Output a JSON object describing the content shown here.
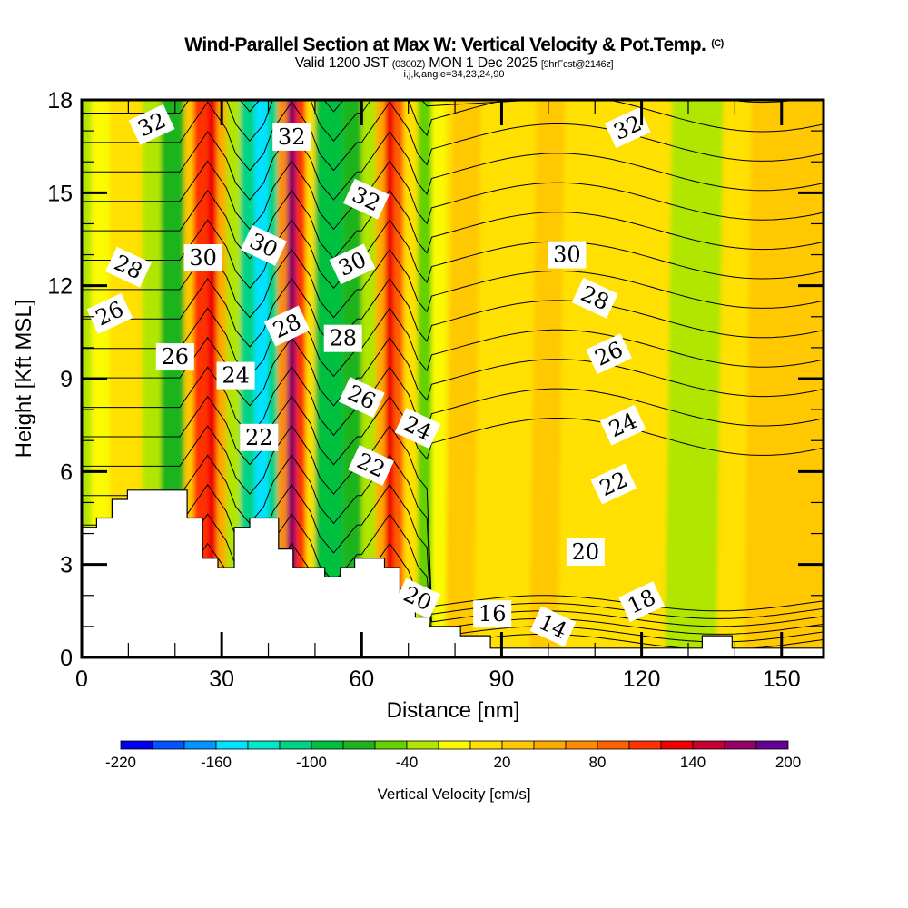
{
  "header": {
    "title": "Wind-Parallel Section at Max W: Vertical Velocity & Pot.Temp.",
    "title_mark": "(C)",
    "valid_prefix": "Valid 1200 JST",
    "valid_utc": "(0300Z)",
    "valid_date": "MON 1 Dec 2025",
    "forecast": "[9hrFcst@2146z]",
    "section_info": "i,j,k,angle=34,23,24,90"
  },
  "chart_data": {
    "type": "heatmap",
    "title": "Wind-Parallel Section at Max W: Vertical Velocity & Pot.Temp.",
    "xlabel": "Distance [nm]",
    "ylabel": "Height [Kft MSL]",
    "xlim": [
      0,
      159
    ],
    "ylim": [
      0,
      18
    ],
    "xticks": [
      0,
      30,
      60,
      90,
      120,
      150
    ],
    "yticks": [
      0,
      3,
      6,
      9,
      12,
      15,
      18
    ],
    "x_minor_step": 10,
    "y_minor_step": 1,
    "colorbar": {
      "label": "Vertical Velocity [cm/s]",
      "levels": [
        -220,
        -200,
        -180,
        -160,
        -140,
        -120,
        -100,
        -80,
        -60,
        -40,
        -20,
        0,
        20,
        40,
        60,
        80,
        100,
        120,
        140,
        160,
        180,
        200
      ],
      "tick_labels": [
        "-220",
        "-160",
        "-100",
        "-40",
        "20",
        "80",
        "140",
        "200"
      ],
      "colors": [
        "#0000f0",
        "#0055ff",
        "#0095ff",
        "#00e2ff",
        "#00e8c8",
        "#00d385",
        "#00c040",
        "#1eb41e",
        "#64d200",
        "#b0e600",
        "#fafa00",
        "#ffe000",
        "#ffc800",
        "#ffaa00",
        "#ff8c00",
        "#ff6000",
        "#ff3200",
        "#f00000",
        "#c80032",
        "#960064",
        "#640096"
      ]
    },
    "vertical_velocity_columns": [
      {
        "x": [
          0,
          2
        ],
        "w": -30
      },
      {
        "x": [
          2,
          6
        ],
        "w": -10
      },
      {
        "x": [
          6,
          13
        ],
        "w": 0
      },
      {
        "x": [
          13,
          17
        ],
        "w": -30
      },
      {
        "x": [
          17,
          22
        ],
        "w": -70
      },
      {
        "x": [
          22,
          24
        ],
        "w": 30
      },
      {
        "x": [
          24,
          27
        ],
        "w": 110
      },
      {
        "x": [
          27,
          29
        ],
        "w": 130
      },
      {
        "x": [
          29,
          31
        ],
        "w": 50
      },
      {
        "x": [
          31,
          34
        ],
        "w": -30
      },
      {
        "x": [
          34,
          37
        ],
        "w": -110
      },
      {
        "x": [
          37,
          40
        ],
        "w": -150
      },
      {
        "x": [
          40,
          42
        ],
        "w": -110
      },
      {
        "x": [
          42,
          44
        ],
        "w": 70
      },
      {
        "x": [
          44,
          46
        ],
        "w": 170
      },
      {
        "x": [
          46,
          48
        ],
        "w": 110
      },
      {
        "x": [
          48,
          50
        ],
        "w": 10
      },
      {
        "x": [
          50,
          56
        ],
        "w": -90
      },
      {
        "x": [
          56,
          60
        ],
        "w": -70
      },
      {
        "x": [
          60,
          63
        ],
        "w": -30
      },
      {
        "x": [
          63,
          65
        ],
        "w": 50
      },
      {
        "x": [
          65,
          67
        ],
        "w": 130
      },
      {
        "x": [
          67,
          69
        ],
        "w": 90
      },
      {
        "x": [
          69,
          72
        ],
        "w": 10
      },
      {
        "x": [
          72,
          75
        ],
        "w": -50
      },
      {
        "x": [
          75,
          78
        ],
        "w": -10
      },
      {
        "x": [
          78,
          84
        ],
        "w": 30
      },
      {
        "x": [
          84,
          90
        ],
        "w": 10
      },
      {
        "x": [
          90,
          96
        ],
        "w": 10
      },
      {
        "x": [
          96,
          102
        ],
        "w": 30
      },
      {
        "x": [
          102,
          112
        ],
        "w": 10
      },
      {
        "x": [
          112,
          120
        ],
        "w": 10
      },
      {
        "x": [
          120,
          125
        ],
        "w": 10
      },
      {
        "x": [
          125,
          136
        ],
        "w": -30
      },
      {
        "x": [
          136,
          142
        ],
        "w": 10
      },
      {
        "x": [
          142,
          159
        ],
        "w": 30
      }
    ],
    "terrain": [
      [
        0,
        4.2
      ],
      [
        3.2,
        4.2
      ],
      [
        3.2,
        4.5
      ],
      [
        6.5,
        4.5
      ],
      [
        6.5,
        5.1
      ],
      [
        9.8,
        5.1
      ],
      [
        9.8,
        5.4
      ],
      [
        22.6,
        5.4
      ],
      [
        22.6,
        4.5
      ],
      [
        25.9,
        4.5
      ],
      [
        25.9,
        3.2
      ],
      [
        29.2,
        3.2
      ],
      [
        29.2,
        2.9
      ],
      [
        32.7,
        2.9
      ],
      [
        32.7,
        4.2
      ],
      [
        36.0,
        4.2
      ],
      [
        36.0,
        4.5
      ],
      [
        42.2,
        4.5
      ],
      [
        42.2,
        3.5
      ],
      [
        45.3,
        3.5
      ],
      [
        45.3,
        2.9
      ],
      [
        52.1,
        2.9
      ],
      [
        52.1,
        2.6
      ],
      [
        55.4,
        2.6
      ],
      [
        55.4,
        2.9
      ],
      [
        58.5,
        2.9
      ],
      [
        58.5,
        3.2
      ],
      [
        64.9,
        3.2
      ],
      [
        64.9,
        2.9
      ],
      [
        68.2,
        2.9
      ],
      [
        68.2,
        1.9
      ],
      [
        71.5,
        1.9
      ],
      [
        71.5,
        1.3
      ],
      [
        74.5,
        1.3
      ],
      [
        74.5,
        1.0
      ],
      [
        81.2,
        1.0
      ],
      [
        81.2,
        0.7
      ],
      [
        87.6,
        0.7
      ],
      [
        87.6,
        0.3
      ],
      [
        133.0,
        0.3
      ],
      [
        133.0,
        0.7
      ],
      [
        139.4,
        0.7
      ],
      [
        139.4,
        0.3
      ],
      [
        159,
        0.3
      ]
    ],
    "isentrope_labels": [
      {
        "value": "32",
        "x": 15,
        "y": 17.2
      },
      {
        "value": "32",
        "x": 45,
        "y": 16.8
      },
      {
        "value": "32",
        "x": 61,
        "y": 14.8
      },
      {
        "value": "32",
        "x": 117,
        "y": 17.1
      },
      {
        "value": "30",
        "x": 26,
        "y": 12.9
      },
      {
        "value": "30",
        "x": 39,
        "y": 13.3
      },
      {
        "value": "30",
        "x": 58,
        "y": 12.7
      },
      {
        "value": "30",
        "x": 104,
        "y": 13.0
      },
      {
        "value": "28",
        "x": 10,
        "y": 12.6
      },
      {
        "value": "28",
        "x": 44,
        "y": 10.7
      },
      {
        "value": "28",
        "x": 56,
        "y": 10.3
      },
      {
        "value": "28",
        "x": 110,
        "y": 11.6
      },
      {
        "value": "26",
        "x": 6,
        "y": 11.1
      },
      {
        "value": "26",
        "x": 20,
        "y": 9.7
      },
      {
        "value": "26",
        "x": 60,
        "y": 8.4
      },
      {
        "value": "26",
        "x": 113,
        "y": 9.8
      },
      {
        "value": "24",
        "x": 33,
        "y": 9.1
      },
      {
        "value": "24",
        "x": 72,
        "y": 7.4
      },
      {
        "value": "24",
        "x": 116,
        "y": 7.5
      },
      {
        "value": "22",
        "x": 38,
        "y": 7.1
      },
      {
        "value": "22",
        "x": 62,
        "y": 6.2
      },
      {
        "value": "22",
        "x": 114,
        "y": 5.6
      },
      {
        "value": "20",
        "x": 108,
        "y": 3.4
      },
      {
        "value": "20",
        "x": 72,
        "y": 1.9
      },
      {
        "value": "18",
        "x": 120,
        "y": 1.8
      },
      {
        "value": "16",
        "x": 88,
        "y": 1.4
      },
      {
        "value": "14",
        "x": 101,
        "y": 1.0
      }
    ],
    "isentrope_contour_interval": 0.5,
    "grid": false
  }
}
